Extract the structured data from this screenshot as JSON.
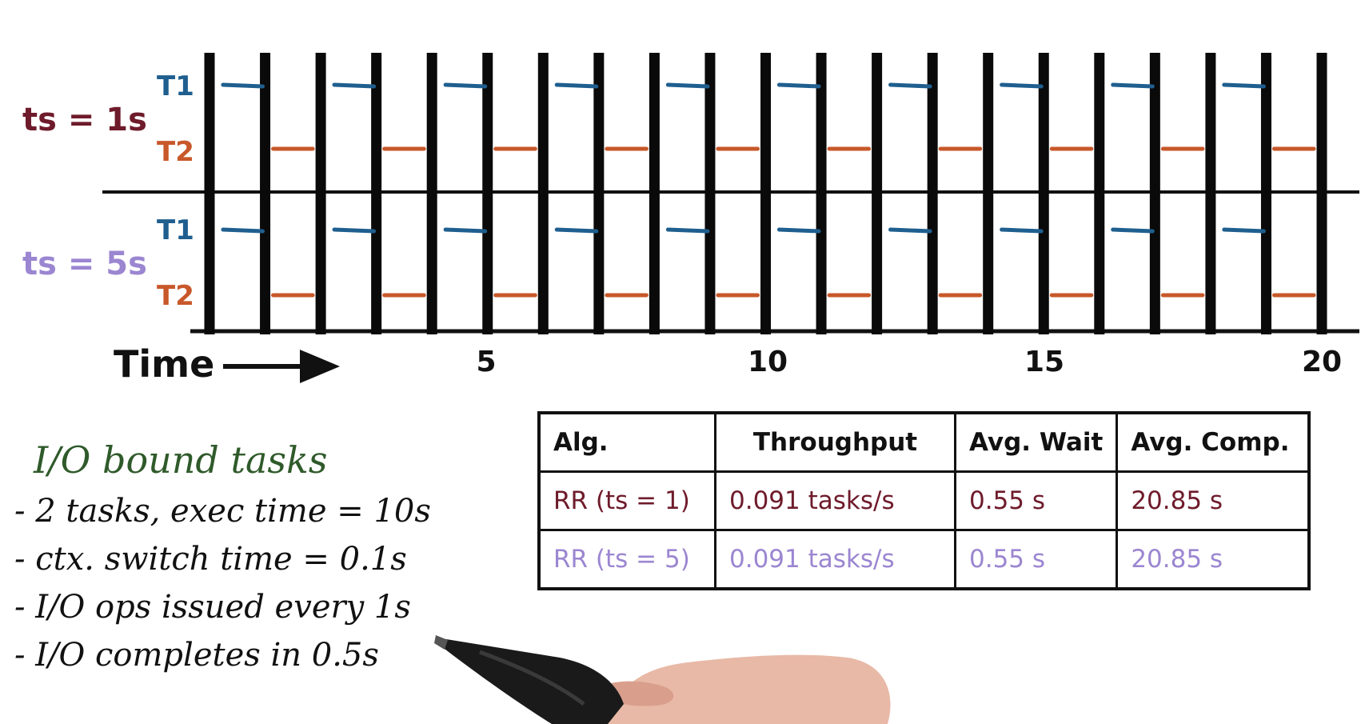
{
  "diagram": {
    "rows": [
      {
        "label": "ts = 1s",
        "color": "#6e1b2b",
        "task_labels": [
          "T1",
          "T2"
        ],
        "t1_segments": [
          [
            0.05,
            0.58
          ],
          [
            1.05,
            1.58
          ],
          [
            2.05,
            2.58
          ],
          [
            3.05,
            3.58
          ],
          [
            4.05,
            4.58
          ],
          [
            5.05,
            5.58
          ],
          [
            6.05,
            6.58
          ],
          [
            7.05,
            7.58
          ],
          [
            8.05,
            8.58
          ],
          [
            9.05,
            9.58
          ]
        ],
        "t2_segments": [
          [
            0.6,
            0.95
          ],
          [
            1.6,
            1.95
          ],
          [
            2.6,
            2.95
          ],
          [
            3.6,
            3.95
          ],
          [
            4.6,
            4.95
          ],
          [
            5.6,
            5.95
          ],
          [
            6.6,
            6.95
          ],
          [
            7.6,
            7.95
          ],
          [
            8.6,
            8.95
          ],
          [
            9.6,
            9.95
          ]
        ]
      },
      {
        "label": "ts = 5s",
        "color": "#9b86d1",
        "task_labels": [
          "T1",
          "T2"
        ],
        "t1_segments": [
          [
            0.05,
            0.58
          ],
          [
            1.05,
            1.58
          ],
          [
            2.05,
            2.58
          ],
          [
            3.05,
            3.58
          ],
          [
            4.05,
            4.58
          ],
          [
            5.05,
            5.58
          ],
          [
            6.05,
            6.58
          ],
          [
            7.05,
            7.58
          ],
          [
            8.05,
            8.58
          ],
          [
            9.05,
            9.58
          ]
        ],
        "t2_segments": [
          [
            0.6,
            0.95
          ],
          [
            1.6,
            1.95
          ],
          [
            2.6,
            2.95
          ],
          [
            3.6,
            3.95
          ],
          [
            4.6,
            4.95
          ],
          [
            5.6,
            5.95
          ],
          [
            6.6,
            6.95
          ],
          [
            7.6,
            7.95
          ],
          [
            8.6,
            8.95
          ],
          [
            9.6,
            9.95
          ]
        ]
      }
    ],
    "t1_color": "#1f5f8f",
    "t2_color": "#c8582a",
    "time_label": "Time",
    "axis_ticks": [
      "5",
      "10",
      "15",
      "20"
    ],
    "axis_tick_values": [
      5,
      10,
      15,
      20
    ]
  },
  "table": {
    "headers": [
      "Alg.",
      "Throughput",
      "Avg. Wait",
      "Avg. Comp."
    ],
    "rows": [
      {
        "color": "#6e1b2b",
        "cells": [
          "RR (ts = 1)",
          "0.091 tasks/s",
          "0.55 s",
          "20.85 s"
        ]
      },
      {
        "color": "#9b86d1",
        "cells": [
          "RR (ts = 5)",
          "0.091 tasks/s",
          "0.55 s",
          "20.85 s"
        ]
      }
    ]
  },
  "notes": {
    "title": "I/O bound tasks",
    "items": [
      "- 2 tasks, exec time = 10s",
      "- ctx. switch time = 0.1s",
      "- I/O ops issued every 1s",
      "- I/O completes in 0.5s"
    ]
  }
}
